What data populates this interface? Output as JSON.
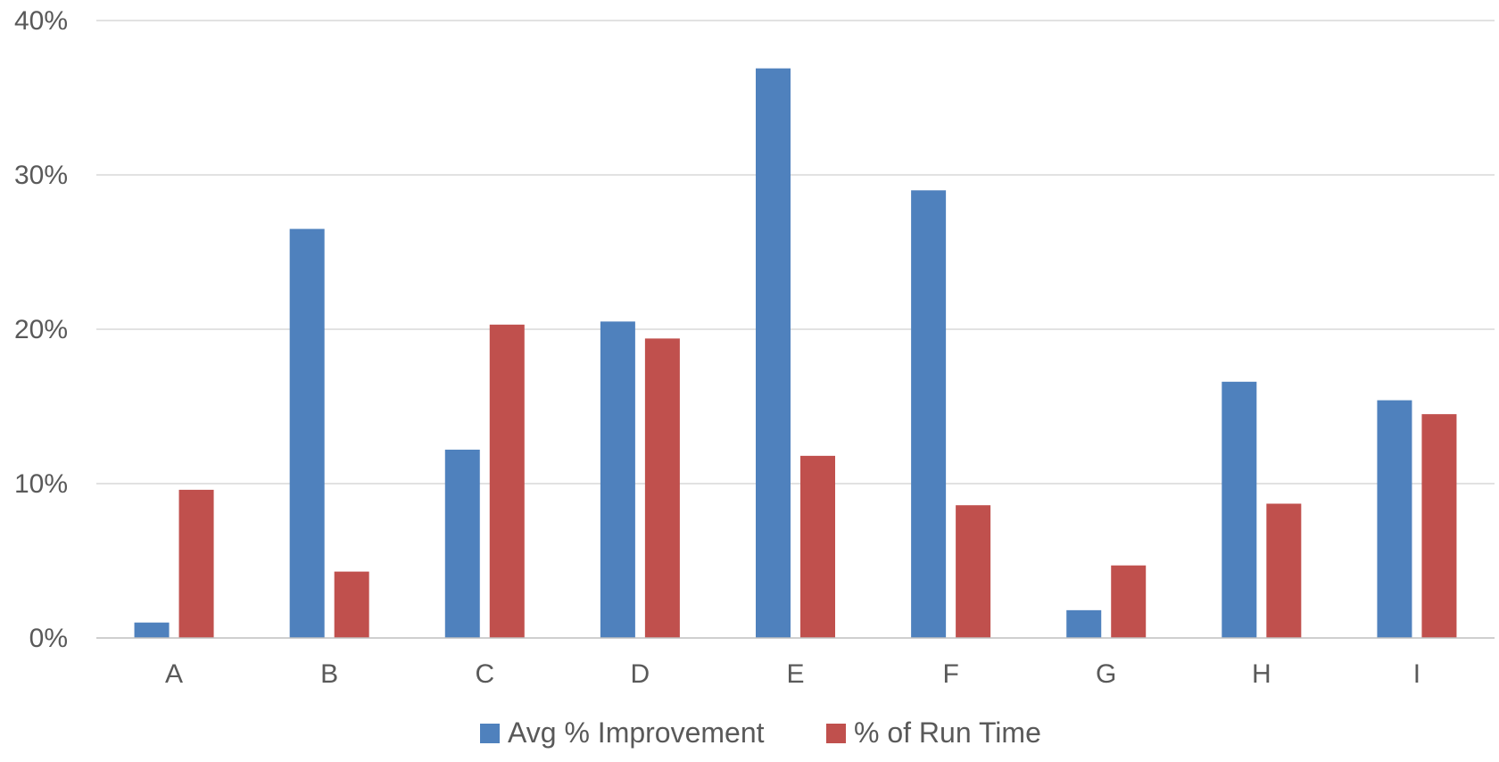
{
  "chart_data": {
    "type": "bar",
    "title": "",
    "xlabel": "",
    "ylabel": "",
    "categories": [
      "A",
      "B",
      "C",
      "D",
      "E",
      "F",
      "G",
      "H",
      "I"
    ],
    "series": [
      {
        "name": "Avg % Improvement",
        "color": "#4F81BD",
        "values": [
          1.0,
          26.5,
          12.2,
          20.5,
          36.9,
          29.0,
          1.8,
          16.6,
          15.4
        ]
      },
      {
        "name": "% of Run Time",
        "color": "#C0504D",
        "values": [
          9.6,
          4.3,
          20.3,
          19.4,
          11.8,
          8.6,
          4.7,
          8.7,
          14.5
        ]
      }
    ],
    "ylim": [
      0,
      40
    ],
    "yticks": [
      0,
      10,
      20,
      30,
      40
    ],
    "ytick_labels": [
      "0%",
      "10%",
      "20%",
      "30%",
      "40%"
    ],
    "grid": true,
    "legend": "bottom-center"
  }
}
